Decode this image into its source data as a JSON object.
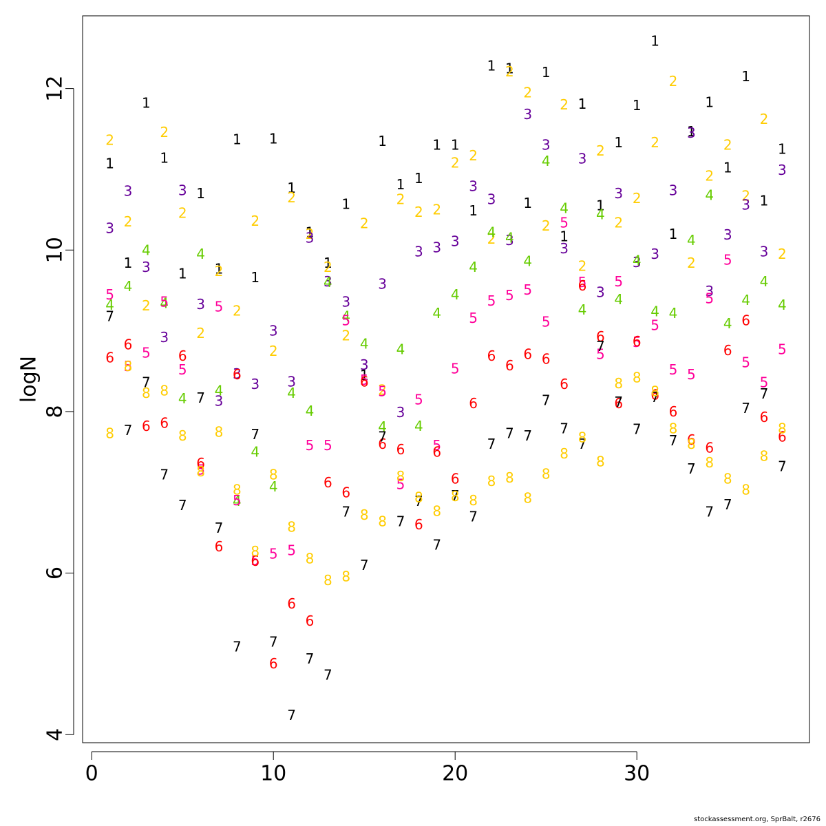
{
  "chart_data": {
    "type": "scatter",
    "title": "",
    "xlabel": "",
    "ylabel": "logN",
    "xlim": [
      -0.5,
      39.5
    ],
    "ylim": [
      3.9,
      12.9
    ],
    "xticks": [
      0,
      10,
      20,
      30
    ],
    "yticks": [
      4,
      6,
      8,
      10,
      12
    ],
    "grid": false,
    "legend": "none",
    "series": [
      {
        "label": "1",
        "color": "#000000",
        "x": [
          1,
          2,
          3,
          4,
          5,
          6,
          7,
          8,
          9,
          10,
          11,
          12,
          13,
          14,
          15,
          16,
          17,
          18,
          19,
          20,
          21,
          22,
          23,
          24,
          25,
          26,
          27,
          28,
          29,
          30,
          31,
          32,
          33,
          34,
          35,
          36,
          37,
          38
        ],
        "y": [
          11.07,
          9.84,
          11.82,
          11.14,
          9.71,
          10.7,
          9.77,
          11.37,
          9.66,
          11.38,
          10.77,
          10.22,
          9.84,
          10.57,
          8.45,
          11.35,
          10.81,
          10.89,
          11.3,
          11.3,
          10.49,
          12.28,
          12.25,
          10.58,
          12.2,
          10.17,
          11.81,
          10.55,
          11.33,
          11.79,
          12.59,
          10.2,
          11.47,
          11.83,
          11.02,
          12.15,
          10.61,
          11.25
        ]
      },
      {
        "label": "2",
        "color": "#ffcc00",
        "x": [
          1,
          2,
          3,
          4,
          5,
          6,
          7,
          8,
          9,
          10,
          11,
          12,
          13,
          14,
          15,
          16,
          17,
          18,
          19,
          20,
          21,
          22,
          23,
          24,
          25,
          26,
          27,
          28,
          29,
          30,
          31,
          32,
          33,
          34,
          35,
          36,
          37,
          38
        ],
        "y": [
          11.36,
          10.35,
          9.31,
          11.46,
          10.46,
          8.97,
          9.74,
          9.25,
          10.36,
          8.75,
          10.65,
          10.2,
          9.79,
          8.94,
          10.33,
          8.27,
          10.63,
          10.47,
          10.5,
          11.08,
          11.17,
          10.14,
          12.21,
          11.95,
          10.3,
          11.8,
          9.8,
          11.23,
          10.34,
          10.64,
          11.33,
          12.09,
          9.84,
          10.92,
          11.3,
          10.67,
          11.62,
          9.95
        ]
      },
      {
        "label": "3",
        "color": "#660099",
        "x": [
          1,
          2,
          3,
          4,
          5,
          6,
          7,
          8,
          9,
          10,
          11,
          12,
          13,
          14,
          15,
          16,
          17,
          18,
          19,
          20,
          21,
          22,
          23,
          24,
          25,
          26,
          27,
          28,
          29,
          30,
          31,
          32,
          33,
          34,
          35,
          36,
          37,
          38
        ],
        "y": [
          10.27,
          10.73,
          9.79,
          8.92,
          10.74,
          9.33,
          8.13,
          8.47,
          8.34,
          9.0,
          8.37,
          10.15,
          9.61,
          9.36,
          8.58,
          9.58,
          7.99,
          9.98,
          10.03,
          10.11,
          10.79,
          10.63,
          10.12,
          11.68,
          11.3,
          10.02,
          11.13,
          9.48,
          10.7,
          9.85,
          9.95,
          10.74,
          11.45,
          9.49,
          10.19,
          10.56,
          9.98,
          10.99
        ]
      },
      {
        "label": "4",
        "color": "#66cc00",
        "x": [
          1,
          2,
          3,
          4,
          5,
          6,
          7,
          8,
          9,
          10,
          11,
          12,
          13,
          14,
          15,
          16,
          17,
          18,
          19,
          20,
          21,
          22,
          23,
          24,
          25,
          26,
          27,
          28,
          29,
          30,
          31,
          32,
          33,
          34,
          35,
          36,
          37,
          38
        ],
        "y": [
          9.32,
          9.55,
          10.0,
          9.34,
          8.16,
          9.95,
          8.26,
          6.89,
          7.5,
          7.07,
          8.23,
          8.01,
          9.6,
          9.18,
          8.84,
          7.81,
          8.77,
          7.82,
          9.22,
          9.45,
          9.79,
          10.22,
          10.15,
          9.86,
          11.1,
          10.52,
          9.26,
          10.44,
          9.39,
          9.87,
          9.24,
          9.22,
          10.12,
          10.68,
          9.09,
          9.38,
          9.61,
          9.32
        ]
      },
      {
        "label": "5",
        "color": "#ff0099",
        "x": [
          1,
          2,
          3,
          4,
          5,
          6,
          7,
          8,
          9,
          10,
          11,
          12,
          13,
          14,
          15,
          16,
          17,
          18,
          19,
          20,
          21,
          22,
          23,
          24,
          25,
          26,
          27,
          28,
          29,
          30,
          31,
          32,
          33,
          34,
          35,
          36,
          37,
          38
        ],
        "y": [
          9.45,
          8.56,
          8.73,
          9.36,
          8.52,
          7.28,
          9.3,
          6.9,
          6.16,
          6.24,
          6.28,
          7.58,
          7.58,
          9.13,
          8.39,
          8.25,
          7.1,
          8.15,
          7.58,
          8.53,
          9.16,
          9.37,
          9.44,
          9.51,
          9.11,
          10.34,
          9.6,
          8.71,
          9.61,
          8.86,
          9.07,
          8.52,
          8.46,
          9.4,
          9.88,
          8.61,
          8.36,
          8.77
        ]
      },
      {
        "label": "6",
        "color": "#ff0000",
        "x": [
          1,
          2,
          3,
          4,
          5,
          6,
          7,
          8,
          9,
          10,
          11,
          12,
          13,
          14,
          15,
          16,
          17,
          18,
          19,
          20,
          21,
          22,
          23,
          24,
          25,
          26,
          27,
          28,
          29,
          30,
          31,
          32,
          33,
          34,
          35,
          36,
          37,
          38
        ],
        "y": [
          8.67,
          8.83,
          7.82,
          7.86,
          8.69,
          7.36,
          6.33,
          8.46,
          6.15,
          4.88,
          5.62,
          5.41,
          7.12,
          7.0,
          8.37,
          7.6,
          7.53,
          6.6,
          7.5,
          7.17,
          8.1,
          8.69,
          8.57,
          8.71,
          8.65,
          8.34,
          9.56,
          8.93,
          8.1,
          8.87,
          8.21,
          8.0,
          7.65,
          7.55,
          8.76,
          9.13,
          7.93,
          7.69
        ]
      },
      {
        "label": "7",
        "color": "#000000",
        "x": [
          1,
          2,
          3,
          4,
          5,
          6,
          7,
          8,
          9,
          10,
          11,
          12,
          13,
          14,
          15,
          16,
          17,
          18,
          19,
          20,
          21,
          22,
          23,
          24,
          25,
          26,
          27,
          28,
          29,
          30,
          31,
          32,
          33,
          34,
          35,
          36,
          37,
          38
        ],
        "y": [
          9.18,
          7.77,
          8.36,
          7.22,
          6.84,
          8.17,
          6.56,
          5.09,
          7.72,
          5.15,
          4.24,
          4.94,
          4.74,
          6.76,
          6.1,
          7.69,
          6.64,
          6.89,
          6.35,
          6.96,
          6.7,
          7.6,
          7.73,
          7.7,
          8.14,
          7.79,
          7.6,
          8.81,
          8.12,
          7.78,
          8.18,
          7.64,
          7.29,
          6.76,
          6.85,
          8.04,
          8.22,
          7.32
        ]
      },
      {
        "label": "8",
        "color": "#ffcc00",
        "x": [
          1,
          2,
          3,
          4,
          5,
          6,
          7,
          8,
          9,
          10,
          11,
          12,
          13,
          14,
          15,
          16,
          17,
          18,
          19,
          20,
          21,
          22,
          23,
          24,
          25,
          26,
          27,
          28,
          29,
          30,
          31,
          32,
          33,
          34,
          35,
          36,
          37,
          38
        ],
        "y": [
          7.73,
          8.56,
          8.23,
          8.26,
          7.7,
          7.26,
          7.75,
          7.03,
          6.27,
          7.22,
          6.57,
          6.18,
          5.91,
          5.96,
          6.72,
          6.64,
          7.2,
          6.94,
          6.77,
          6.95,
          6.9,
          7.14,
          7.18,
          6.93,
          7.23,
          7.48,
          7.68,
          7.38,
          8.35,
          8.42,
          8.25,
          7.79,
          7.6,
          7.37,
          7.17,
          7.03,
          7.45,
          7.79
        ]
      }
    ]
  },
  "footer": "stockassessment.org, SprBalt, r2676"
}
